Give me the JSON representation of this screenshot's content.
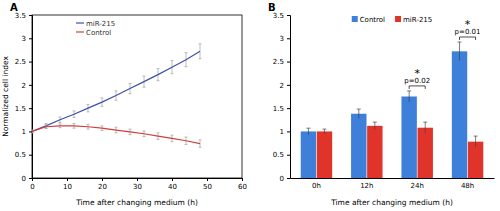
{
  "chart_data": [
    {
      "type": "line",
      "title": "A",
      "x_label": "Time after changing medium (h)",
      "y_label": "Normalized cell index",
      "x": [
        0,
        4,
        8,
        12,
        16,
        20,
        24,
        28,
        32,
        36,
        40,
        44,
        48
      ],
      "xlim": [
        0,
        60
      ],
      "xticks": [
        0,
        10,
        20,
        30,
        40,
        50,
        60
      ],
      "ylim": [
        0,
        3.5
      ],
      "yticks": [
        0,
        0.5,
        1,
        1.5,
        2,
        2.5,
        3,
        3.5
      ],
      "legend": "upper left",
      "series": [
        {
          "name": "miR-215",
          "color": "#3f4fa8",
          "values": [
            1.0,
            1.12,
            1.25,
            1.37,
            1.5,
            1.63,
            1.77,
            1.92,
            2.07,
            2.22,
            2.38,
            2.54,
            2.72
          ],
          "errors": [
            0.03,
            0.05,
            0.06,
            0.07,
            0.08,
            0.09,
            0.1,
            0.11,
            0.12,
            0.13,
            0.14,
            0.15,
            0.16
          ]
        },
        {
          "name": "Control",
          "color": "#d0403a",
          "values": [
            1.0,
            1.1,
            1.12,
            1.12,
            1.1,
            1.07,
            1.03,
            0.99,
            0.95,
            0.9,
            0.85,
            0.8,
            0.74
          ],
          "errors": [
            0.03,
            0.04,
            0.04,
            0.05,
            0.05,
            0.05,
            0.06,
            0.06,
            0.06,
            0.07,
            0.07,
            0.08,
            0.08
          ]
        }
      ]
    },
    {
      "type": "bar",
      "title": "B",
      "x_label": "Time after changing medium (h)",
      "categories": [
        "0h",
        "12h",
        "24h",
        "48h"
      ],
      "ylim": [
        0,
        3.5
      ],
      "yticks": [
        0,
        0.5,
        1,
        1.5,
        2,
        2.5,
        3,
        3.5
      ],
      "legend": "upper center",
      "series": [
        {
          "name": "Control",
          "color": "#3d7fd9",
          "values": [
            1.0,
            1.38,
            1.75,
            2.72
          ],
          "errors": [
            0.07,
            0.1,
            0.12,
            0.2
          ]
        },
        {
          "name": "miR-215",
          "color": "#e0342b",
          "values": [
            1.0,
            1.12,
            1.08,
            0.78
          ],
          "errors": [
            0.05,
            0.08,
            0.12,
            0.12
          ]
        }
      ],
      "annotations": [
        {
          "category": "24h",
          "text": "*",
          "label": "p=0.02"
        },
        {
          "category": "48h",
          "text": "*",
          "label": "p=0.01"
        }
      ]
    }
  ]
}
